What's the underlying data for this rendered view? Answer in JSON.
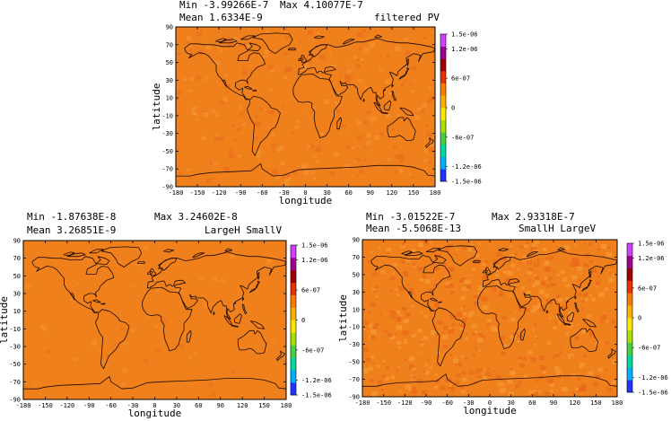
{
  "colors": {
    "field_base": "#f0801c",
    "field_speck_light": "#f59a35",
    "field_speck_dark": "#e8661a",
    "coast": "#1a0a00",
    "colorbar": [
      "#2233ff",
      "#00b0ff",
      "#00d8a0",
      "#48d040",
      "#a8e000",
      "#ffe800",
      "#ffb000",
      "#ff7a00",
      "#e83000",
      "#a00000",
      "#a00090",
      "#d040ff"
    ]
  },
  "chart_data": [
    {
      "type": "heatmap",
      "title": "filtered PV",
      "stats": {
        "min": "Min -3.99266E-7",
        "max": "Max 4.10077E-7",
        "mean": "Mean 1.6334E-9"
      },
      "xlabel": "longitude",
      "ylabel": "latitude",
      "xlim": [
        -180,
        180
      ],
      "ylim": [
        -90,
        90
      ],
      "xticks": [
        "-180",
        "-150",
        "-120",
        "-90",
        "-60",
        "-30",
        "0",
        "30",
        "60",
        "90",
        "120",
        "150",
        "180"
      ],
      "yticks": [
        "90",
        "70",
        "50",
        "30",
        "10",
        "-10",
        "-30",
        "-50",
        "-70",
        "-90"
      ],
      "colorbar": {
        "range": [
          -1.5e-06,
          1.5e-06
        ],
        "labels": [
          "1.5e-06",
          "1.2e-06",
          "6e-07",
          "0",
          "-6e-07",
          "-1.2e-06",
          "-1.5e-06"
        ]
      },
      "noise": 0.35
    },
    {
      "type": "heatmap",
      "title": "LargeH SmallV",
      "stats": {
        "min": "Min -1.87638E-8",
        "max": "Max 3.24602E-8",
        "mean": "Mean 3.26851E-9"
      },
      "xlabel": "longitude",
      "ylabel": "latitude",
      "xlim": [
        -180,
        180
      ],
      "ylim": [
        -90,
        90
      ],
      "xticks": [
        "-180",
        "-150",
        "-120",
        "-90",
        "-60",
        "-30",
        "0",
        "30",
        "60",
        "90",
        "120",
        "150",
        "180"
      ],
      "yticks": [
        "90",
        "70",
        "50",
        "30",
        "10",
        "-10",
        "-30",
        "-50",
        "-70",
        "-90"
      ],
      "colorbar": {
        "range": [
          -1.5e-06,
          1.5e-06
        ],
        "labels": [
          "1.5e-06",
          "1.2e-06",
          "6e-07",
          "0",
          "-6e-07",
          "-1.2e-06",
          "-1.5e-06"
        ]
      },
      "noise": 0.08
    },
    {
      "type": "heatmap",
      "title": "SmallH LargeV",
      "stats": {
        "min": "Min -3.01522E-7",
        "max": "Max 2.93318E-7",
        "mean": "Mean -5.5068E-13"
      },
      "xlabel": "longitude",
      "ylabel": "latitude",
      "xlim": [
        -180,
        180
      ],
      "ylim": [
        -90,
        90
      ],
      "xticks": [
        "-180",
        "-150",
        "-120",
        "-90",
        "-60",
        "-30",
        "0",
        "30",
        "60",
        "90",
        "120",
        "150",
        "180"
      ],
      "yticks": [
        "90",
        "70",
        "50",
        "30",
        "10",
        "-10",
        "-30",
        "-50",
        "-70",
        "-90"
      ],
      "colorbar": {
        "range": [
          -1.5e-06,
          1.5e-06
        ],
        "labels": [
          "1.5e-06",
          "1.2e-06",
          "6e-07",
          "0",
          "-6e-07",
          "-1.2e-06",
          "-1.5e-06"
        ]
      },
      "noise": 0.7
    }
  ]
}
